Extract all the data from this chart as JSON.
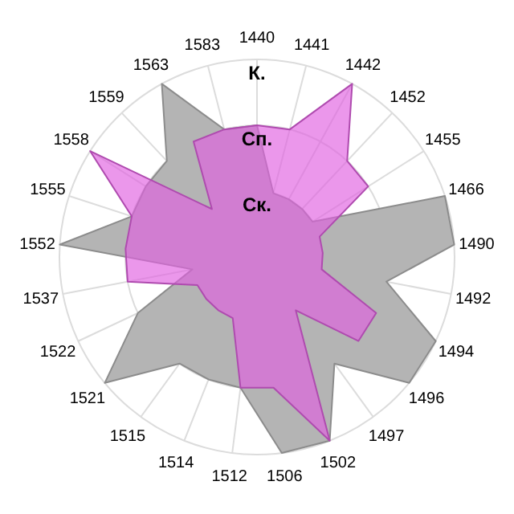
{
  "chart_data": {
    "type": "radar",
    "categories": [
      "1440",
      "1441",
      "1442",
      "1452",
      "1455",
      "1466",
      "1490",
      "1492",
      "1494",
      "1496",
      "1497",
      "1502",
      "1506",
      "1512",
      "1514",
      "1515",
      "1521",
      "1522",
      "1537",
      "1552",
      "1555",
      "1558",
      "1559",
      "1563",
      "1583"
    ],
    "ylim": [
      0,
      3
    ],
    "yticks": [
      {
        "value": 1,
        "label": "Ск."
      },
      {
        "value": 2,
        "label": "Сп."
      },
      {
        "value": 3,
        "label": "К."
      }
    ],
    "grid": true,
    "series": [
      {
        "color": "#b4b4b4",
        "values": [
          2,
          1,
          1,
          1,
          1,
          3,
          3,
          2,
          3,
          3,
          2,
          3,
          3,
          2,
          2,
          2,
          3,
          2,
          1,
          3,
          2,
          2,
          2,
          3,
          2
        ]
      },
      {
        "color": "#e060e0",
        "values": [
          2,
          2,
          3,
          2,
          2,
          1,
          1,
          1,
          2,
          2,
          1,
          3,
          2,
          2,
          1,
          1,
          1,
          1,
          2,
          2,
          2,
          3,
          1,
          2,
          2
        ]
      }
    ]
  }
}
